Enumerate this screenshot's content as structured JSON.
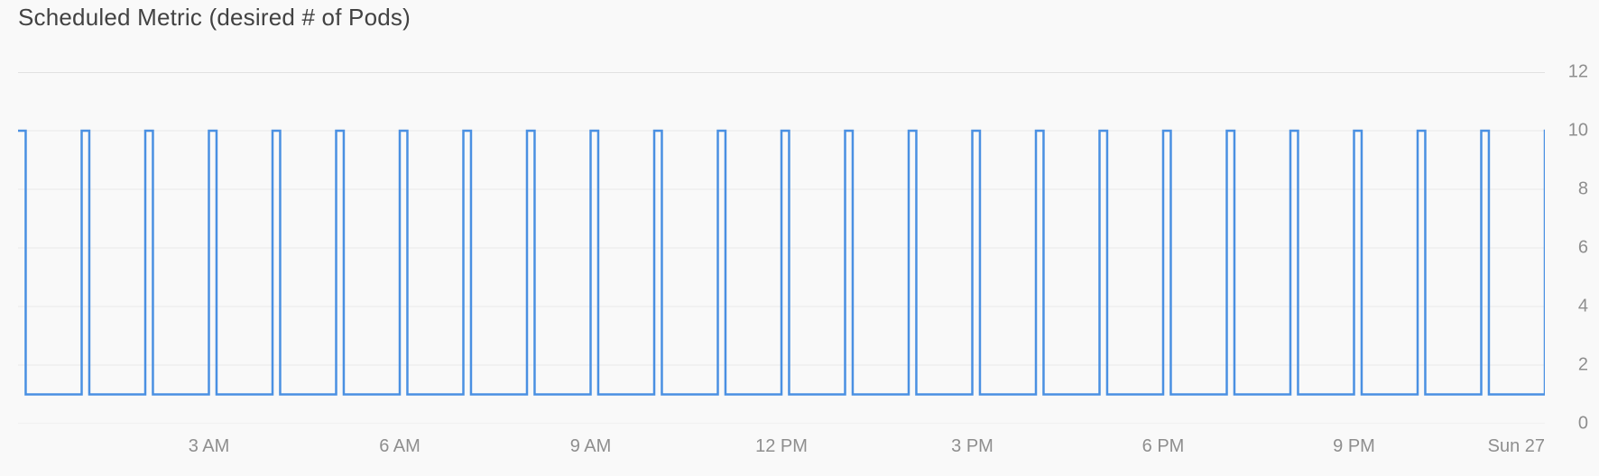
{
  "chart": {
    "type": "line-step",
    "title": "Scheduled Metric (desired # of Pods)",
    "title_fontsize": 26,
    "title_color": "#424242",
    "background_color": "#f9f9f9",
    "plot_background_color": "#f9f9f9",
    "series_color": "#4a90e2",
    "line_width": 2.5,
    "grid_color": "#e9e9e9",
    "top_rule_color": "#e2e2e2",
    "axis_label_color": "#8e8e8e",
    "axis_label_fontsize": 20,
    "x": {
      "min_hours": 0,
      "max_hours": 24,
      "ticks_hours": [
        3,
        6,
        9,
        12,
        15,
        18,
        21,
        24
      ],
      "tick_labels": [
        "3 AM",
        "6 AM",
        "9 AM",
        "12 PM",
        "3 PM",
        "6 PM",
        "9 PM",
        "Sun 27"
      ]
    },
    "y": {
      "min": 0,
      "max": 12,
      "ticks": [
        0,
        2,
        4,
        6,
        8,
        10,
        12
      ],
      "tick_labels": [
        "0",
        "2",
        "4",
        "6",
        "8",
        "10",
        "12"
      ]
    },
    "pulse": {
      "low_value": 1,
      "high_value": 10,
      "count": 25,
      "period_hours": 1.0,
      "high_width_hours": 0.12,
      "first_spike_start_hours": 0.0
    }
  }
}
